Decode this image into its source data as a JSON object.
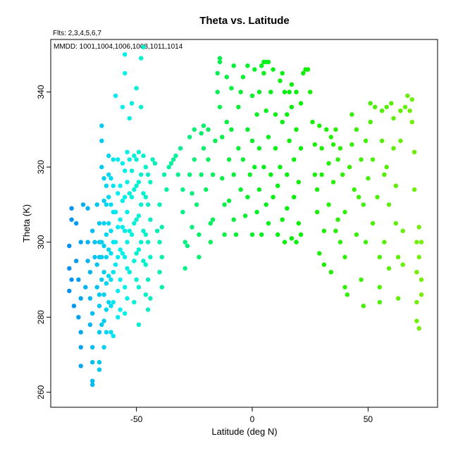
{
  "chart_data": {
    "type": "scatter",
    "title": "Theta vs. Latitude",
    "subtitle_flts": "Flts: 2,3,4,5,6,7",
    "subtitle_mmdd": "MMDD: 1001,1004,1006,1008,1011,1014",
    "xlabel": "Latitude (deg N)",
    "ylabel": "Theta (K)",
    "xlim": [
      -87,
      80
    ],
    "ylim": [
      256,
      354
    ],
    "x_ticks": [
      -50,
      0,
      50
    ],
    "y_ticks": [
      260,
      280,
      300,
      320,
      340
    ],
    "grid": false,
    "legend": "none",
    "color_scale": "blue-cyan-green by latitude",
    "points": [
      [
        -79,
        287
      ],
      [
        -79,
        293
      ],
      [
        -79,
        299
      ],
      [
        -78,
        306
      ],
      [
        -78,
        309
      ],
      [
        -78,
        290
      ],
      [
        -77,
        283
      ],
      [
        -76,
        295
      ],
      [
        -76,
        305
      ],
      [
        -75,
        280
      ],
      [
        -75,
        290
      ],
      [
        -74,
        272
      ],
      [
        -74,
        267
      ],
      [
        -74,
        276
      ],
      [
        -74,
        285
      ],
      [
        -74,
        300
      ],
      [
        -73,
        310
      ],
      [
        -72,
        288
      ],
      [
        -71,
        295
      ],
      [
        -71,
        300
      ],
      [
        -71,
        309
      ],
      [
        -70,
        278
      ],
      [
        -70,
        285
      ],
      [
        -70,
        292
      ],
      [
        -69,
        263
      ],
      [
        -69,
        262
      ],
      [
        -69,
        268
      ],
      [
        -69,
        272
      ],
      [
        -69,
        281
      ],
      [
        -69,
        303
      ],
      [
        -68,
        296
      ],
      [
        -68,
        300
      ],
      [
        -67,
        288
      ],
      [
        -67,
        294
      ],
      [
        -67,
        310
      ],
      [
        -66,
        266
      ],
      [
        -66,
        268
      ],
      [
        -66,
        276
      ],
      [
        -66,
        283
      ],
      [
        -66,
        286
      ],
      [
        -66,
        296
      ],
      [
        -66,
        300
      ],
      [
        -66,
        305
      ],
      [
        -65,
        278
      ],
      [
        -65,
        290
      ],
      [
        -65,
        296
      ],
      [
        -65,
        300
      ],
      [
        -65,
        331
      ],
      [
        -65,
        327
      ],
      [
        -65,
        320
      ],
      [
        -64,
        272
      ],
      [
        -64,
        279
      ],
      [
        -64,
        286
      ],
      [
        -64,
        292
      ],
      [
        -64,
        299
      ],
      [
        -64,
        305
      ],
      [
        -64,
        311
      ],
      [
        -64,
        317
      ],
      [
        -63,
        276
      ],
      [
        -63,
        282
      ],
      [
        -63,
        289
      ],
      [
        -63,
        296
      ],
      [
        -63,
        302
      ],
      [
        -63,
        310
      ],
      [
        -63,
        315
      ],
      [
        -62,
        284
      ],
      [
        -62,
        291
      ],
      [
        -62,
        298
      ],
      [
        -62,
        305
      ],
      [
        -62,
        312
      ],
      [
        -62,
        318
      ],
      [
        -62,
        323
      ],
      [
        -61,
        276
      ],
      [
        -61,
        283
      ],
      [
        -61,
        290
      ],
      [
        -61,
        297
      ],
      [
        -61,
        303
      ],
      [
        -61,
        310
      ],
      [
        -61,
        317
      ],
      [
        -60,
        275
      ],
      [
        -60,
        284
      ],
      [
        -60,
        292
      ],
      [
        -60,
        300
      ],
      [
        -60,
        308
      ],
      [
        -60,
        315
      ],
      [
        -60,
        322
      ],
      [
        -59,
        339
      ],
      [
        -59,
        294
      ],
      [
        -59,
        300
      ],
      [
        -59,
        308
      ],
      [
        -58,
        280
      ],
      [
        -58,
        287
      ],
      [
        -58,
        296
      ],
      [
        -58,
        304
      ],
      [
        -58,
        313
      ],
      [
        -58,
        322
      ],
      [
        -57,
        282
      ],
      [
        -57,
        290
      ],
      [
        -57,
        298
      ],
      [
        -57,
        306
      ],
      [
        -57,
        315
      ],
      [
        -56,
        297
      ],
      [
        -56,
        304
      ],
      [
        -56,
        311
      ],
      [
        -56,
        321
      ],
      [
        -56,
        336
      ],
      [
        -55,
        350
      ],
      [
        -55,
        281
      ],
      [
        -55,
        288
      ],
      [
        -55,
        296
      ],
      [
        -55,
        303
      ],
      [
        -55,
        312
      ],
      [
        -55,
        319
      ],
      [
        -55,
        345
      ],
      [
        -54,
        285
      ],
      [
        -54,
        293
      ],
      [
        -54,
        300
      ],
      [
        -54,
        308
      ],
      [
        -54,
        316
      ],
      [
        -54,
        324
      ],
      [
        -53,
        292
      ],
      [
        -53,
        303
      ],
      [
        -53,
        313
      ],
      [
        -53,
        322
      ],
      [
        -53,
        333
      ],
      [
        -52,
        302
      ],
      [
        -52,
        312
      ],
      [
        -52,
        319
      ],
      [
        -52,
        337
      ],
      [
        -51,
        284
      ],
      [
        -51,
        295
      ],
      [
        -51,
        305
      ],
      [
        -51,
        314
      ],
      [
        -51,
        323
      ],
      [
        -50,
        290
      ],
      [
        -50,
        297
      ],
      [
        -50,
        306
      ],
      [
        -50,
        315
      ],
      [
        -50,
        322
      ],
      [
        -50,
        341
      ],
      [
        -49,
        278
      ],
      [
        -49,
        288
      ],
      [
        -49,
        298
      ],
      [
        -49,
        307
      ],
      [
        -49,
        316
      ],
      [
        -49,
        324
      ],
      [
        -48,
        349
      ],
      [
        -48,
        336
      ],
      [
        -48,
        300
      ],
      [
        -48,
        310
      ],
      [
        -48,
        318
      ],
      [
        -47,
        352
      ],
      [
        -47,
        295
      ],
      [
        -47,
        303
      ],
      [
        -47,
        313
      ],
      [
        -47,
        323
      ],
      [
        -46,
        286
      ],
      [
        -46,
        294
      ],
      [
        -46,
        302
      ],
      [
        -46,
        312
      ],
      [
        -46,
        320
      ],
      [
        -45,
        282
      ],
      [
        -45,
        290
      ],
      [
        -45,
        300
      ],
      [
        -45,
        310
      ],
      [
        -45,
        318
      ],
      [
        -44,
        285
      ],
      [
        -44,
        296
      ],
      [
        -44,
        306
      ],
      [
        -44,
        316
      ],
      [
        -43,
        322
      ],
      [
        -42,
        321
      ],
      [
        -41,
        303
      ],
      [
        -40,
        292
      ],
      [
        -40,
        300
      ],
      [
        -40,
        310
      ],
      [
        -39,
        288
      ],
      [
        -39,
        296
      ],
      [
        -39,
        304
      ],
      [
        -38,
        318
      ],
      [
        -37,
        314
      ],
      [
        -36,
        320
      ],
      [
        -35,
        321
      ],
      [
        -34,
        322
      ],
      [
        -33,
        323
      ],
      [
        -32,
        318
      ],
      [
        -31,
        325
      ],
      [
        -30,
        308
      ],
      [
        -30,
        314
      ],
      [
        -29,
        300
      ],
      [
        -29,
        293
      ],
      [
        -28,
        299
      ],
      [
        -27,
        328
      ],
      [
        -27,
        318
      ],
      [
        -26,
        304
      ],
      [
        -26,
        313
      ],
      [
        -25,
        330
      ],
      [
        -25,
        322
      ],
      [
        -24,
        310
      ],
      [
        -23,
        296
      ],
      [
        -23,
        302
      ],
      [
        -22,
        318
      ],
      [
        -22,
        329
      ],
      [
        -21,
        331
      ],
      [
        -21,
        325
      ],
      [
        -20,
        314
      ],
      [
        -19,
        330
      ],
      [
        -19,
        322
      ],
      [
        -18,
        305
      ],
      [
        -18,
        300
      ],
      [
        -17,
        306
      ],
      [
        -17,
        318
      ],
      [
        -16,
        327
      ],
      [
        -15,
        340
      ],
      [
        -15,
        345
      ],
      [
        -14,
        349
      ],
      [
        -14,
        348
      ],
      [
        -14,
        336
      ],
      [
        -13,
        328
      ],
      [
        -13,
        317
      ],
      [
        -12,
        310
      ],
      [
        -12,
        302
      ],
      [
        -11,
        332
      ],
      [
        -11,
        344
      ],
      [
        -10,
        322
      ],
      [
        -10,
        311
      ],
      [
        -9,
        341
      ],
      [
        -9,
        330
      ],
      [
        -8,
        347
      ],
      [
        -8,
        318
      ],
      [
        -8,
        306
      ],
      [
        -7,
        302
      ],
      [
        -6,
        336
      ],
      [
        -6,
        325
      ],
      [
        -5,
        314
      ],
      [
        -5,
        340
      ],
      [
        -4,
        344
      ],
      [
        -4,
        322
      ],
      [
        -3,
        307
      ],
      [
        -2,
        330
      ],
      [
        -2,
        347
      ],
      [
        -2,
        312
      ],
      [
        -1,
        318
      ],
      [
        0,
        327
      ],
      [
        0,
        339
      ],
      [
        0,
        302
      ],
      [
        1,
        346
      ],
      [
        1,
        320
      ],
      [
        2,
        308
      ],
      [
        2,
        334
      ],
      [
        3,
        314
      ],
      [
        3,
        325
      ],
      [
        3,
        340
      ],
      [
        4,
        302
      ],
      [
        4,
        347
      ],
      [
        5,
        348
      ],
      [
        5,
        345
      ],
      [
        5,
        320
      ],
      [
        6,
        348
      ],
      [
        6,
        335
      ],
      [
        6,
        310
      ],
      [
        7,
        348
      ],
      [
        7,
        328
      ],
      [
        7,
        305
      ],
      [
        8,
        340
      ],
      [
        8,
        318
      ],
      [
        9,
        312
      ],
      [
        9,
        346
      ],
      [
        10,
        325
      ],
      [
        10,
        334
      ],
      [
        11,
        302
      ],
      [
        11,
        315
      ],
      [
        12,
        343
      ],
      [
        12,
        320
      ],
      [
        13,
        345
      ],
      [
        13,
        332
      ],
      [
        13,
        306
      ],
      [
        14,
        340
      ],
      [
        14,
        300
      ],
      [
        15,
        334
      ],
      [
        15,
        318
      ],
      [
        15,
        309
      ],
      [
        16,
        340
      ],
      [
        16,
        327
      ],
      [
        17,
        301
      ],
      [
        17,
        336
      ],
      [
        17,
        342
      ],
      [
        18,
        322
      ],
      [
        18,
        312
      ],
      [
        19,
        340
      ],
      [
        19,
        330
      ],
      [
        19,
        300
      ],
      [
        20,
        316
      ],
      [
        20,
        305
      ],
      [
        21,
        337
      ],
      [
        21,
        325
      ],
      [
        21,
        302
      ],
      [
        22,
        345
      ],
      [
        23,
        346
      ],
      [
        24,
        346
      ],
      [
        25,
        340
      ],
      [
        26,
        332
      ],
      [
        27,
        326
      ],
      [
        27,
        318
      ],
      [
        28,
        314
      ],
      [
        28,
        308
      ],
      [
        29,
        297
      ],
      [
        29,
        331
      ],
      [
        30,
        325
      ],
      [
        30,
        318
      ],
      [
        31,
        303
      ],
      [
        31,
        294
      ],
      [
        32,
        330
      ],
      [
        33,
        321
      ],
      [
        33,
        310
      ],
      [
        34,
        292
      ],
      [
        34,
        328
      ],
      [
        35,
        326
      ],
      [
        35,
        316
      ],
      [
        36,
        303
      ],
      [
        36,
        330
      ],
      [
        37,
        322
      ],
      [
        37,
        306
      ],
      [
        38,
        300
      ],
      [
        38,
        325
      ],
      [
        39,
        318
      ],
      [
        40,
        296
      ],
      [
        40,
        308
      ],
      [
        40,
        288
      ],
      [
        41,
        286
      ],
      [
        42,
        320
      ],
      [
        43,
        334
      ],
      [
        43,
        326
      ],
      [
        44,
        314
      ],
      [
        45,
        302
      ],
      [
        45,
        330
      ],
      [
        46,
        312
      ],
      [
        47,
        322
      ],
      [
        47,
        290
      ],
      [
        48,
        283
      ],
      [
        48,
        310
      ],
      [
        49,
        327
      ],
      [
        49,
        300
      ],
      [
        50,
        317
      ],
      [
        51,
        337
      ],
      [
        51,
        332
      ],
      [
        52,
        305
      ],
      [
        52,
        322
      ],
      [
        53,
        336
      ],
      [
        54,
        312
      ],
      [
        55,
        296
      ],
      [
        55,
        288
      ],
      [
        55,
        284
      ],
      [
        56,
        335
      ],
      [
        56,
        327
      ],
      [
        57,
        318
      ],
      [
        57,
        300
      ],
      [
        58,
        336
      ],
      [
        58,
        320
      ],
      [
        59,
        293
      ],
      [
        59,
        310
      ],
      [
        60,
        337
      ],
      [
        61,
        333
      ],
      [
        61,
        325
      ],
      [
        62,
        315
      ],
      [
        62,
        305
      ],
      [
        63,
        296
      ],
      [
        63,
        285
      ],
      [
        64,
        335
      ],
      [
        64,
        327
      ],
      [
        65,
        303
      ],
      [
        65,
        294
      ],
      [
        66,
        336
      ],
      [
        67,
        339
      ],
      [
        68,
        335
      ],
      [
        69,
        338
      ],
      [
        69,
        332
      ],
      [
        70,
        324
      ],
      [
        70,
        314
      ],
      [
        71,
        300
      ],
      [
        71,
        292
      ],
      [
        71,
        284
      ],
      [
        71,
        279
      ],
      [
        72,
        277
      ],
      [
        72,
        296
      ],
      [
        72,
        304
      ],
      [
        73,
        300
      ],
      [
        73,
        290
      ],
      [
        73,
        286
      ]
    ]
  }
}
